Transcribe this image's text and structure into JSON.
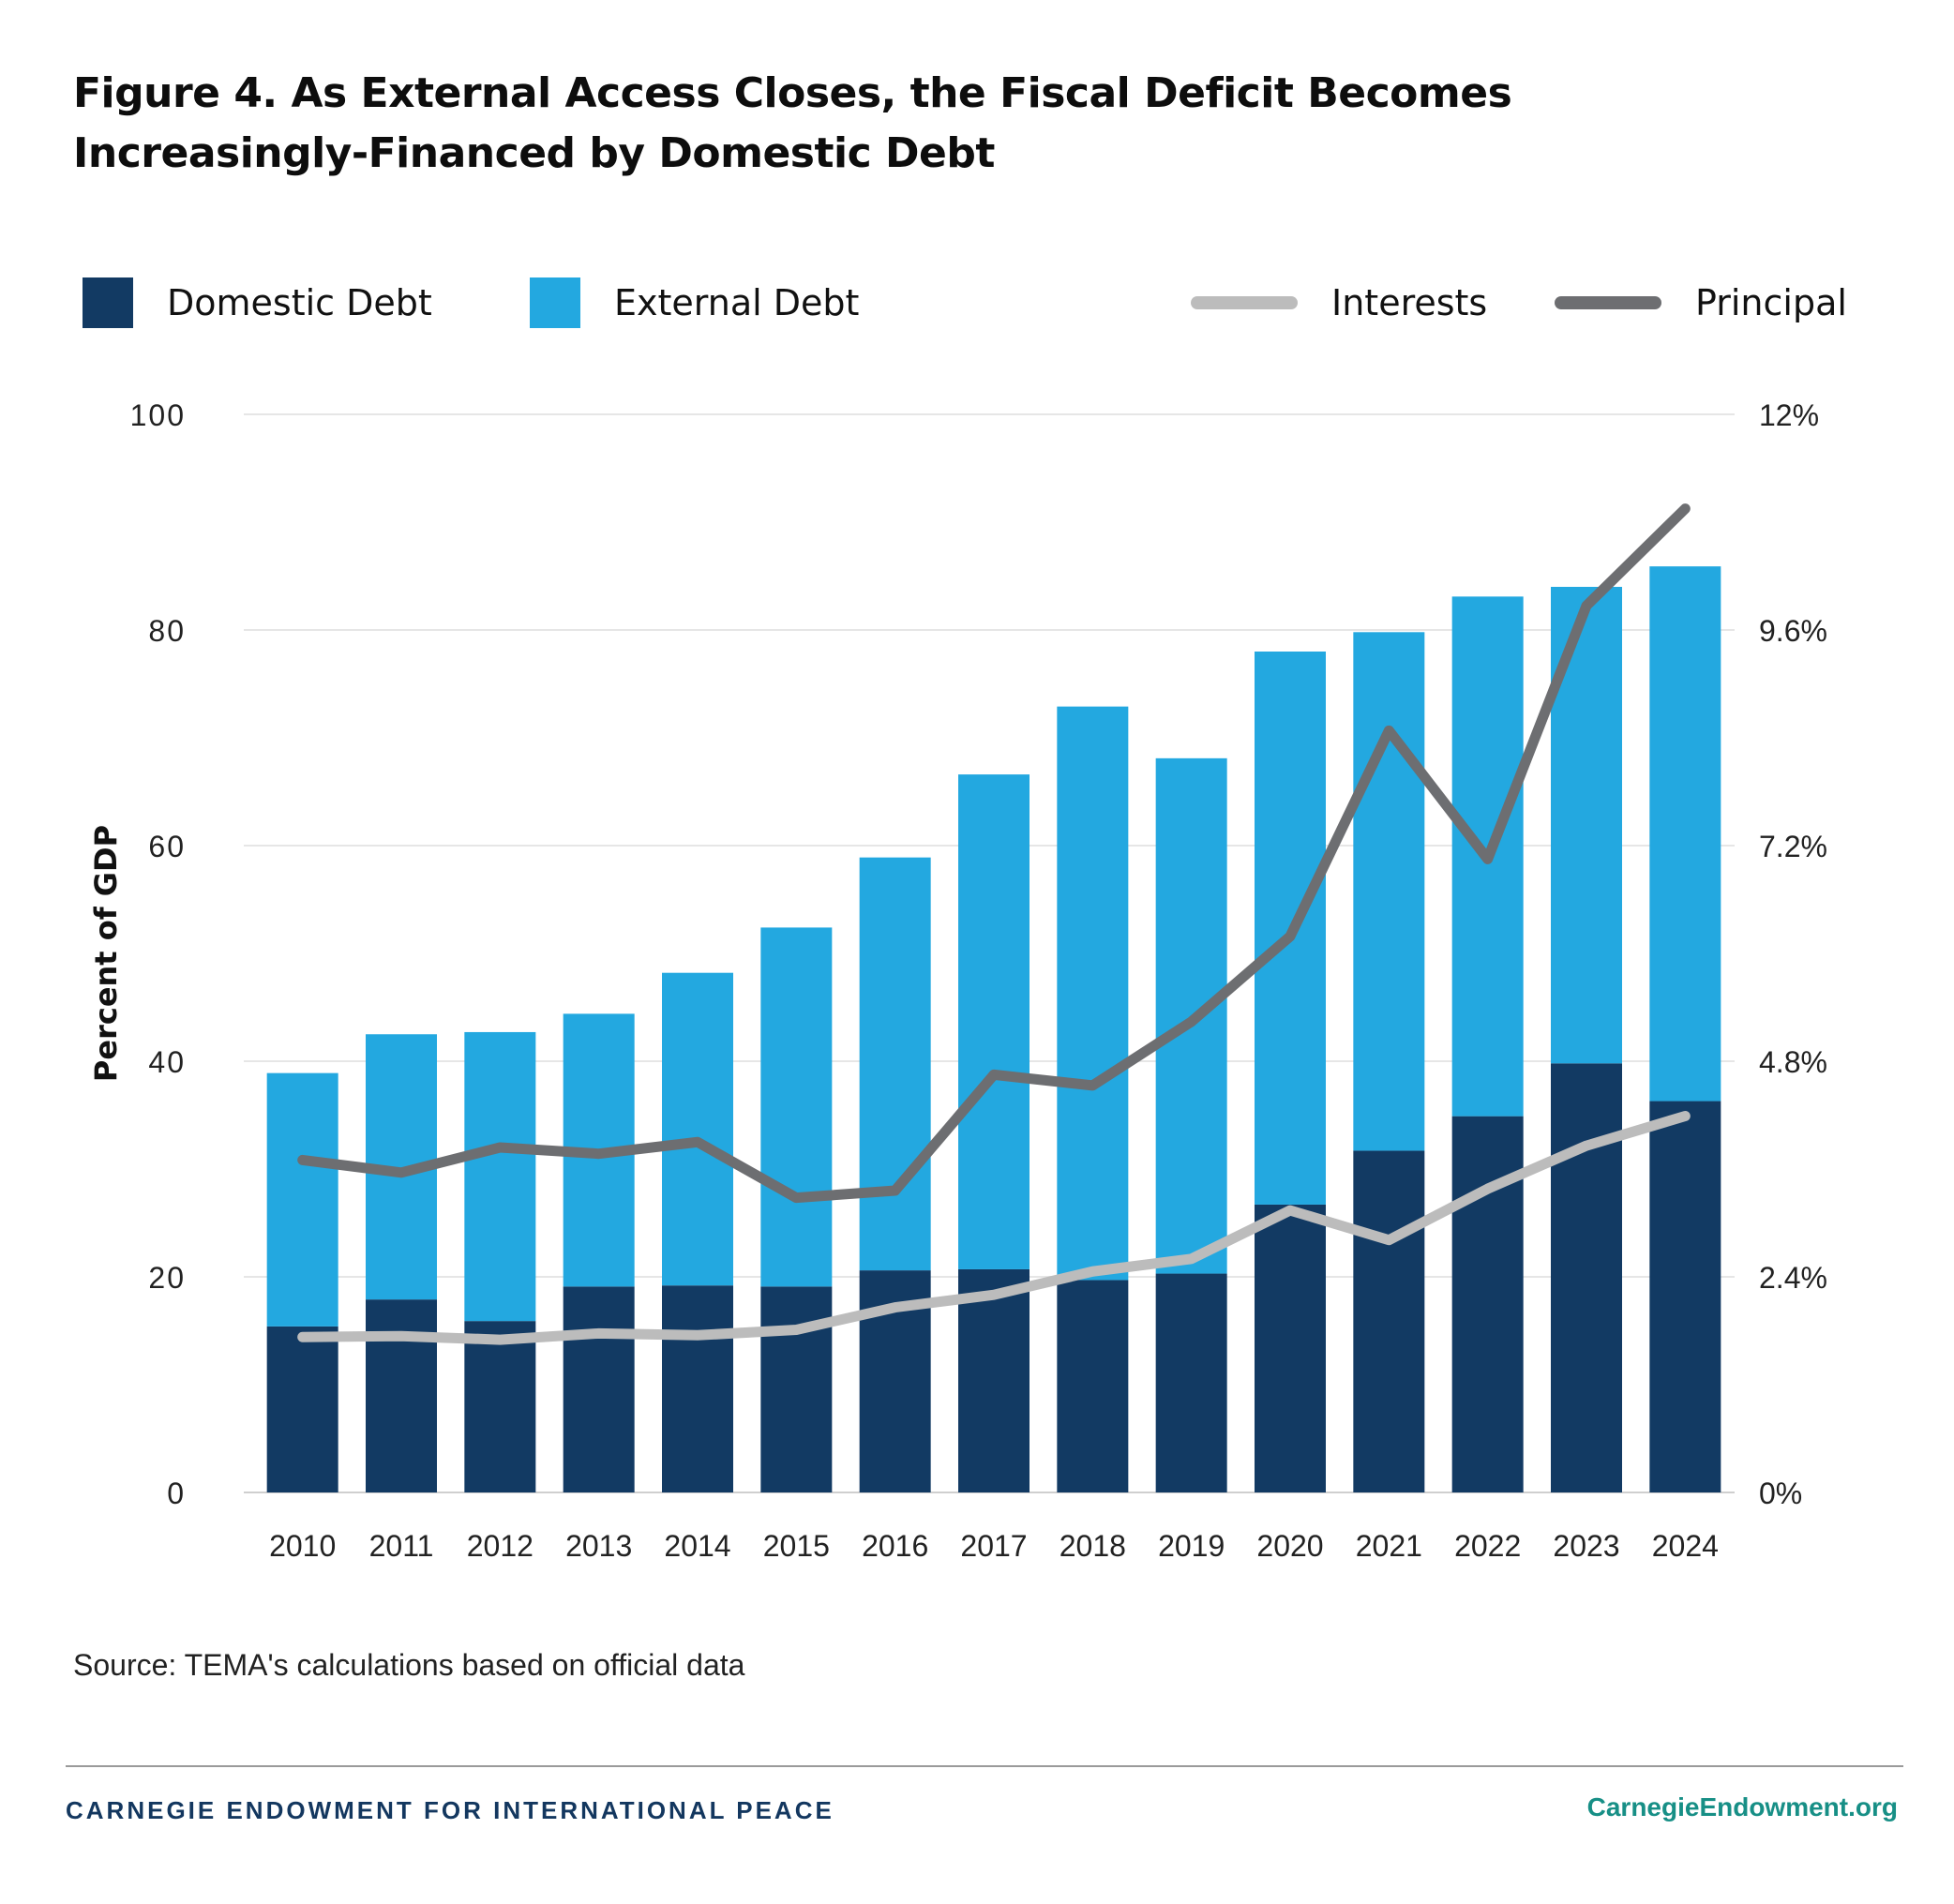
{
  "title": "Figure 4. As External Access Closes, the Fiscal Deficit Becomes Increasingly-Financed by Domestic Debt",
  "legend": {
    "domestic": "Domestic Debt",
    "external": "External Debt",
    "interests": "Interests",
    "principal": "Principal"
  },
  "colors": {
    "domestic": "#123a63",
    "external": "#23a8e0",
    "interests": "#bcbcbc",
    "principal": "#6d6e71"
  },
  "source": "Source: TEMA's calculations based on official data",
  "footer": {
    "org": "CARNEGIE ENDOWMENT FOR INTERNATIONAL PEACE",
    "url": "CarnegieEndowment.org"
  },
  "chart_data": {
    "type": "bar",
    "stacked": true,
    "categories": [
      "2010",
      "2011",
      "2012",
      "2013",
      "2014",
      "2015",
      "2016",
      "2017",
      "2018",
      "2019",
      "2020",
      "2021",
      "2022",
      "2023",
      "2024"
    ],
    "ylabel": "Percent of GDP",
    "ylim": [
      0,
      100
    ],
    "yticks": [
      "0",
      "20",
      "40",
      "60",
      "80",
      "100"
    ],
    "y2lim": [
      0,
      12
    ],
    "y2ticks": [
      "0%",
      "2.4%",
      "4.8%",
      "7.2%",
      "9.6%",
      "12%"
    ],
    "grid": true,
    "legend_position": "top",
    "series": [
      {
        "name": "Domestic Debt",
        "axis": "left",
        "kind": "bar",
        "values": [
          15.4,
          17.9,
          15.9,
          19.1,
          19.2,
          19.1,
          20.6,
          20.7,
          19.7,
          20.3,
          26.7,
          31.7,
          34.9,
          39.8,
          36.3
        ]
      },
      {
        "name": "External Debt",
        "axis": "left",
        "kind": "bar",
        "values": [
          23.5,
          24.6,
          26.8,
          25.3,
          29.0,
          33.3,
          38.3,
          45.9,
          53.2,
          47.8,
          51.3,
          48.1,
          48.2,
          44.2,
          49.6
        ]
      },
      {
        "name": "Interests",
        "axis": "right",
        "kind": "line",
        "values": [
          1.73,
          1.74,
          1.7,
          1.77,
          1.75,
          1.81,
          2.06,
          2.2,
          2.46,
          2.6,
          3.14,
          2.81,
          3.38,
          3.86,
          4.19
        ]
      },
      {
        "name": "Principal",
        "axis": "right",
        "kind": "line",
        "values": [
          3.7,
          3.56,
          3.84,
          3.77,
          3.9,
          3.28,
          3.36,
          4.65,
          4.53,
          5.24,
          6.19,
          8.48,
          7.05,
          9.87,
          10.95
        ]
      }
    ]
  }
}
